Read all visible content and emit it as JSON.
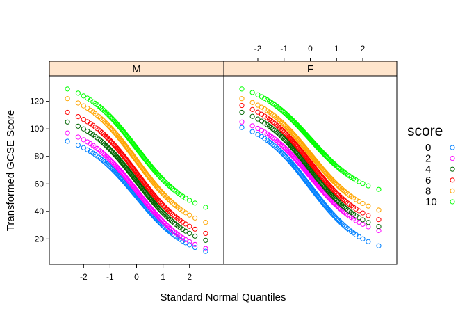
{
  "chart_data": {
    "type": "scatter",
    "subtype": "qqmath",
    "xlabel": "Standard Normal Quantiles",
    "ylabel": "Transformed GCSE Score",
    "xlim": [
      -2.9,
      2.9
    ],
    "ylim": [
      4,
      136
    ],
    "x_ticks": [
      -2,
      -1,
      0,
      1,
      2
    ],
    "y_ticks": [
      20,
      40,
      60,
      80,
      100,
      120
    ],
    "x_tick_labels": [
      "-2",
      "-1",
      "0",
      "1",
      "2"
    ],
    "y_tick_labels": [
      "20",
      "40",
      "60",
      "80",
      "100",
      "120"
    ],
    "panels": [
      "M",
      "F"
    ],
    "grid": false,
    "legend": {
      "title": "score",
      "position": "right",
      "entries": [
        "0",
        "2",
        "4",
        "6",
        "8",
        "10"
      ]
    },
    "series": [
      {
        "name": "0",
        "color": "#0080ff",
        "M": {
          "min": 11,
          "max": 91
        },
        "F": {
          "min": 15,
          "max": 101
        }
      },
      {
        "name": "2",
        "color": "#ff00ff",
        "M": {
          "min": 13,
          "max": 97
        },
        "F": {
          "min": 26,
          "max": 105
        }
      },
      {
        "name": "4",
        "color": "#006400",
        "M": {
          "min": 19,
          "max": 105
        },
        "F": {
          "min": 29,
          "max": 112
        }
      },
      {
        "name": "6",
        "color": "#ff0000",
        "M": {
          "min": 24,
          "max": 112
        },
        "F": {
          "min": 34,
          "max": 117
        }
      },
      {
        "name": "8",
        "color": "#ffa500",
        "M": {
          "min": 32,
          "max": 122
        },
        "F": {
          "min": 41,
          "max": 122
        }
      },
      {
        "name": "10",
        "color": "#00ff00",
        "M": {
          "min": 43,
          "max": 129
        },
        "F": {
          "min": 56,
          "max": 129
        }
      }
    ]
  }
}
